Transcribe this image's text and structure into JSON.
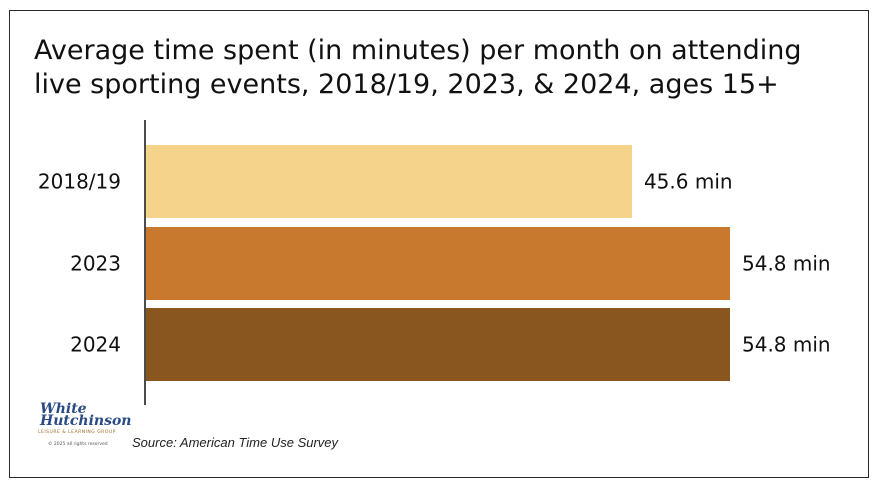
{
  "title": "Average time spent (in minutes) per month on attending live sporting events, 2018/19, 2023, & 2024, ages 15+",
  "source": "Source: American Time Use Survey",
  "logo": {
    "line1": "White",
    "line2": "Hutchinson",
    "tagline": "LEISURE & LEARNING GROUP",
    "copyright": "© 2025 all rights reserved"
  },
  "chart_data": {
    "type": "bar",
    "orientation": "horizontal",
    "title": "Average time spent (in minutes) per month on attending live sporting events, 2018/19, 2023, & 2024, ages 15+",
    "categories": [
      "2018/19",
      "2023",
      "2024"
    ],
    "values": [
      45.6,
      54.8,
      54.8
    ],
    "labels": [
      "45.6 min",
      "54.8 min",
      "54.8 min"
    ],
    "colors": [
      "#F6D38A",
      "#C8792E",
      "#8A561F"
    ],
    "xlim": [
      0,
      54.8
    ],
    "grid": false,
    "legend": "none"
  }
}
